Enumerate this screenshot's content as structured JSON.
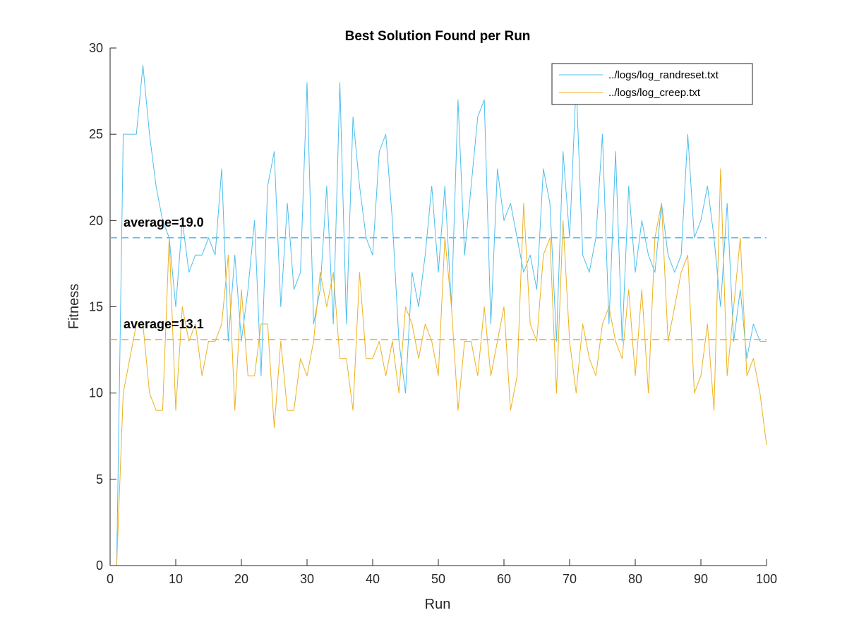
{
  "chart_data": {
    "type": "line",
    "title": "Best Solution Found per Run",
    "xlabel": "Run",
    "ylabel": "Fitness",
    "xlim": [
      0,
      100
    ],
    "ylim": [
      0,
      30
    ],
    "xticks": [
      0,
      10,
      20,
      30,
      40,
      50,
      60,
      70,
      80,
      90,
      100
    ],
    "yticks": [
      0,
      5,
      10,
      15,
      20,
      25,
      30
    ],
    "grid": false,
    "legend_position": "top-right",
    "series": [
      {
        "name": "../logs/log_randreset.txt",
        "color": "#4dbeee",
        "x": [
          1,
          2,
          3,
          4,
          5,
          6,
          7,
          8,
          9,
          10,
          11,
          12,
          13,
          14,
          15,
          16,
          17,
          18,
          19,
          20,
          21,
          22,
          23,
          24,
          25,
          26,
          27,
          28,
          29,
          30,
          31,
          32,
          33,
          34,
          35,
          36,
          37,
          38,
          39,
          40,
          41,
          42,
          43,
          44,
          45,
          46,
          47,
          48,
          49,
          50,
          51,
          52,
          53,
          54,
          55,
          56,
          57,
          58,
          59,
          60,
          61,
          62,
          63,
          64,
          65,
          66,
          67,
          68,
          69,
          70,
          71,
          72,
          73,
          74,
          75,
          76,
          77,
          78,
          79,
          80,
          81,
          82,
          83,
          84,
          85,
          86,
          87,
          88,
          89,
          90,
          91,
          92,
          93,
          94,
          95,
          96,
          97,
          98,
          99,
          100
        ],
        "values": [
          0,
          25,
          25,
          25,
          29,
          25,
          22,
          20,
          19,
          15,
          20,
          17,
          18,
          18,
          19,
          18,
          23,
          13,
          18,
          13,
          16,
          20,
          11,
          22,
          24,
          15,
          21,
          16,
          17,
          28,
          14,
          16,
          22,
          14,
          28,
          14,
          26,
          22,
          19,
          18,
          24,
          25,
          20,
          13,
          10,
          17,
          15,
          18,
          22,
          17,
          22,
          15,
          27,
          18,
          22,
          26,
          27,
          14,
          23,
          20,
          21,
          19,
          17,
          18,
          16,
          23,
          21,
          13,
          24,
          19,
          28,
          18,
          17,
          19,
          25,
          14,
          24,
          13,
          22,
          17,
          20,
          18,
          17,
          21,
          18,
          17,
          18,
          25,
          19,
          20,
          22,
          19,
          15,
          21,
          13,
          16,
          12,
          14,
          13,
          13
        ]
      },
      {
        "name": "../logs/log_creep.txt",
        "color": "#edb120",
        "x": [
          1,
          2,
          3,
          4,
          5,
          6,
          7,
          8,
          9,
          10,
          11,
          12,
          13,
          14,
          15,
          16,
          17,
          18,
          19,
          20,
          21,
          22,
          23,
          24,
          25,
          26,
          27,
          28,
          29,
          30,
          31,
          32,
          33,
          34,
          35,
          36,
          37,
          38,
          39,
          40,
          41,
          42,
          43,
          44,
          45,
          46,
          47,
          48,
          49,
          50,
          51,
          52,
          53,
          54,
          55,
          56,
          57,
          58,
          59,
          60,
          61,
          62,
          63,
          64,
          65,
          66,
          67,
          68,
          69,
          70,
          71,
          72,
          73,
          74,
          75,
          76,
          77,
          78,
          79,
          80,
          81,
          82,
          83,
          84,
          85,
          86,
          87,
          88,
          89,
          90,
          91,
          92,
          93,
          94,
          95,
          96,
          97,
          98,
          99,
          100
        ],
        "values": [
          0,
          10,
          12,
          14,
          14,
          10,
          9,
          9,
          19,
          9,
          15,
          13,
          14,
          11,
          13,
          13,
          14,
          18,
          9,
          16,
          11,
          11,
          14,
          14,
          8,
          13,
          9,
          9,
          12,
          11,
          13,
          17,
          15,
          17,
          12,
          12,
          9,
          17,
          12,
          12,
          13,
          11,
          13,
          10,
          15,
          14,
          12,
          14,
          13,
          11,
          19,
          15,
          9,
          13,
          13,
          11,
          15,
          11,
          13,
          15,
          9,
          11,
          21,
          14,
          13,
          18,
          19,
          10,
          20,
          13,
          10,
          14,
          12,
          11,
          14,
          15,
          13,
          12,
          16,
          11,
          16,
          10,
          19,
          21,
          13,
          15,
          17,
          18,
          10,
          11,
          14,
          9,
          23,
          11,
          15,
          19,
          11,
          12,
          10,
          7
        ]
      }
    ],
    "averages": [
      {
        "label": "average=19.0",
        "value": 19.0,
        "color": "#4dbeee"
      },
      {
        "label": "average=13.1",
        "value": 13.1,
        "color": "#edb120"
      }
    ]
  }
}
